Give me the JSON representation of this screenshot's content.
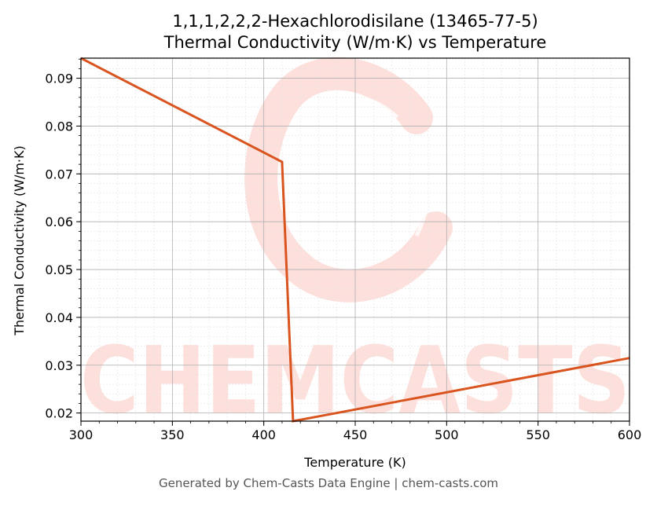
{
  "chart_data": {
    "type": "line",
    "title_line1": "1,1,1,2,2,2-Hexachlorodisilane (13465-77-5)",
    "title_line2": "Thermal Conductivity (W/m·K) vs Temperature",
    "xlabel": "Temperature (K)",
    "ylabel": "Thermal Conductivity (W/m·K)",
    "xlim": [
      300,
      600
    ],
    "ylim": [
      0.0183,
      0.0942
    ],
    "x_ticks": [
      300,
      350,
      400,
      450,
      500,
      550,
      600
    ],
    "y_ticks": [
      0.02,
      0.03,
      0.04,
      0.05,
      0.06,
      0.07,
      0.08,
      0.09
    ],
    "grid": true,
    "series": [
      {
        "color": "#d9541f",
        "x": [
          300,
          410,
          416,
          600
        ],
        "y": [
          0.0942,
          0.0725,
          0.0183,
          0.0315
        ]
      }
    ]
  },
  "watermark": {
    "text": "CHEMCASTS",
    "color": "#fde0dc"
  },
  "footer": "Generated by Chem-Casts Data Engine | chem-casts.com"
}
